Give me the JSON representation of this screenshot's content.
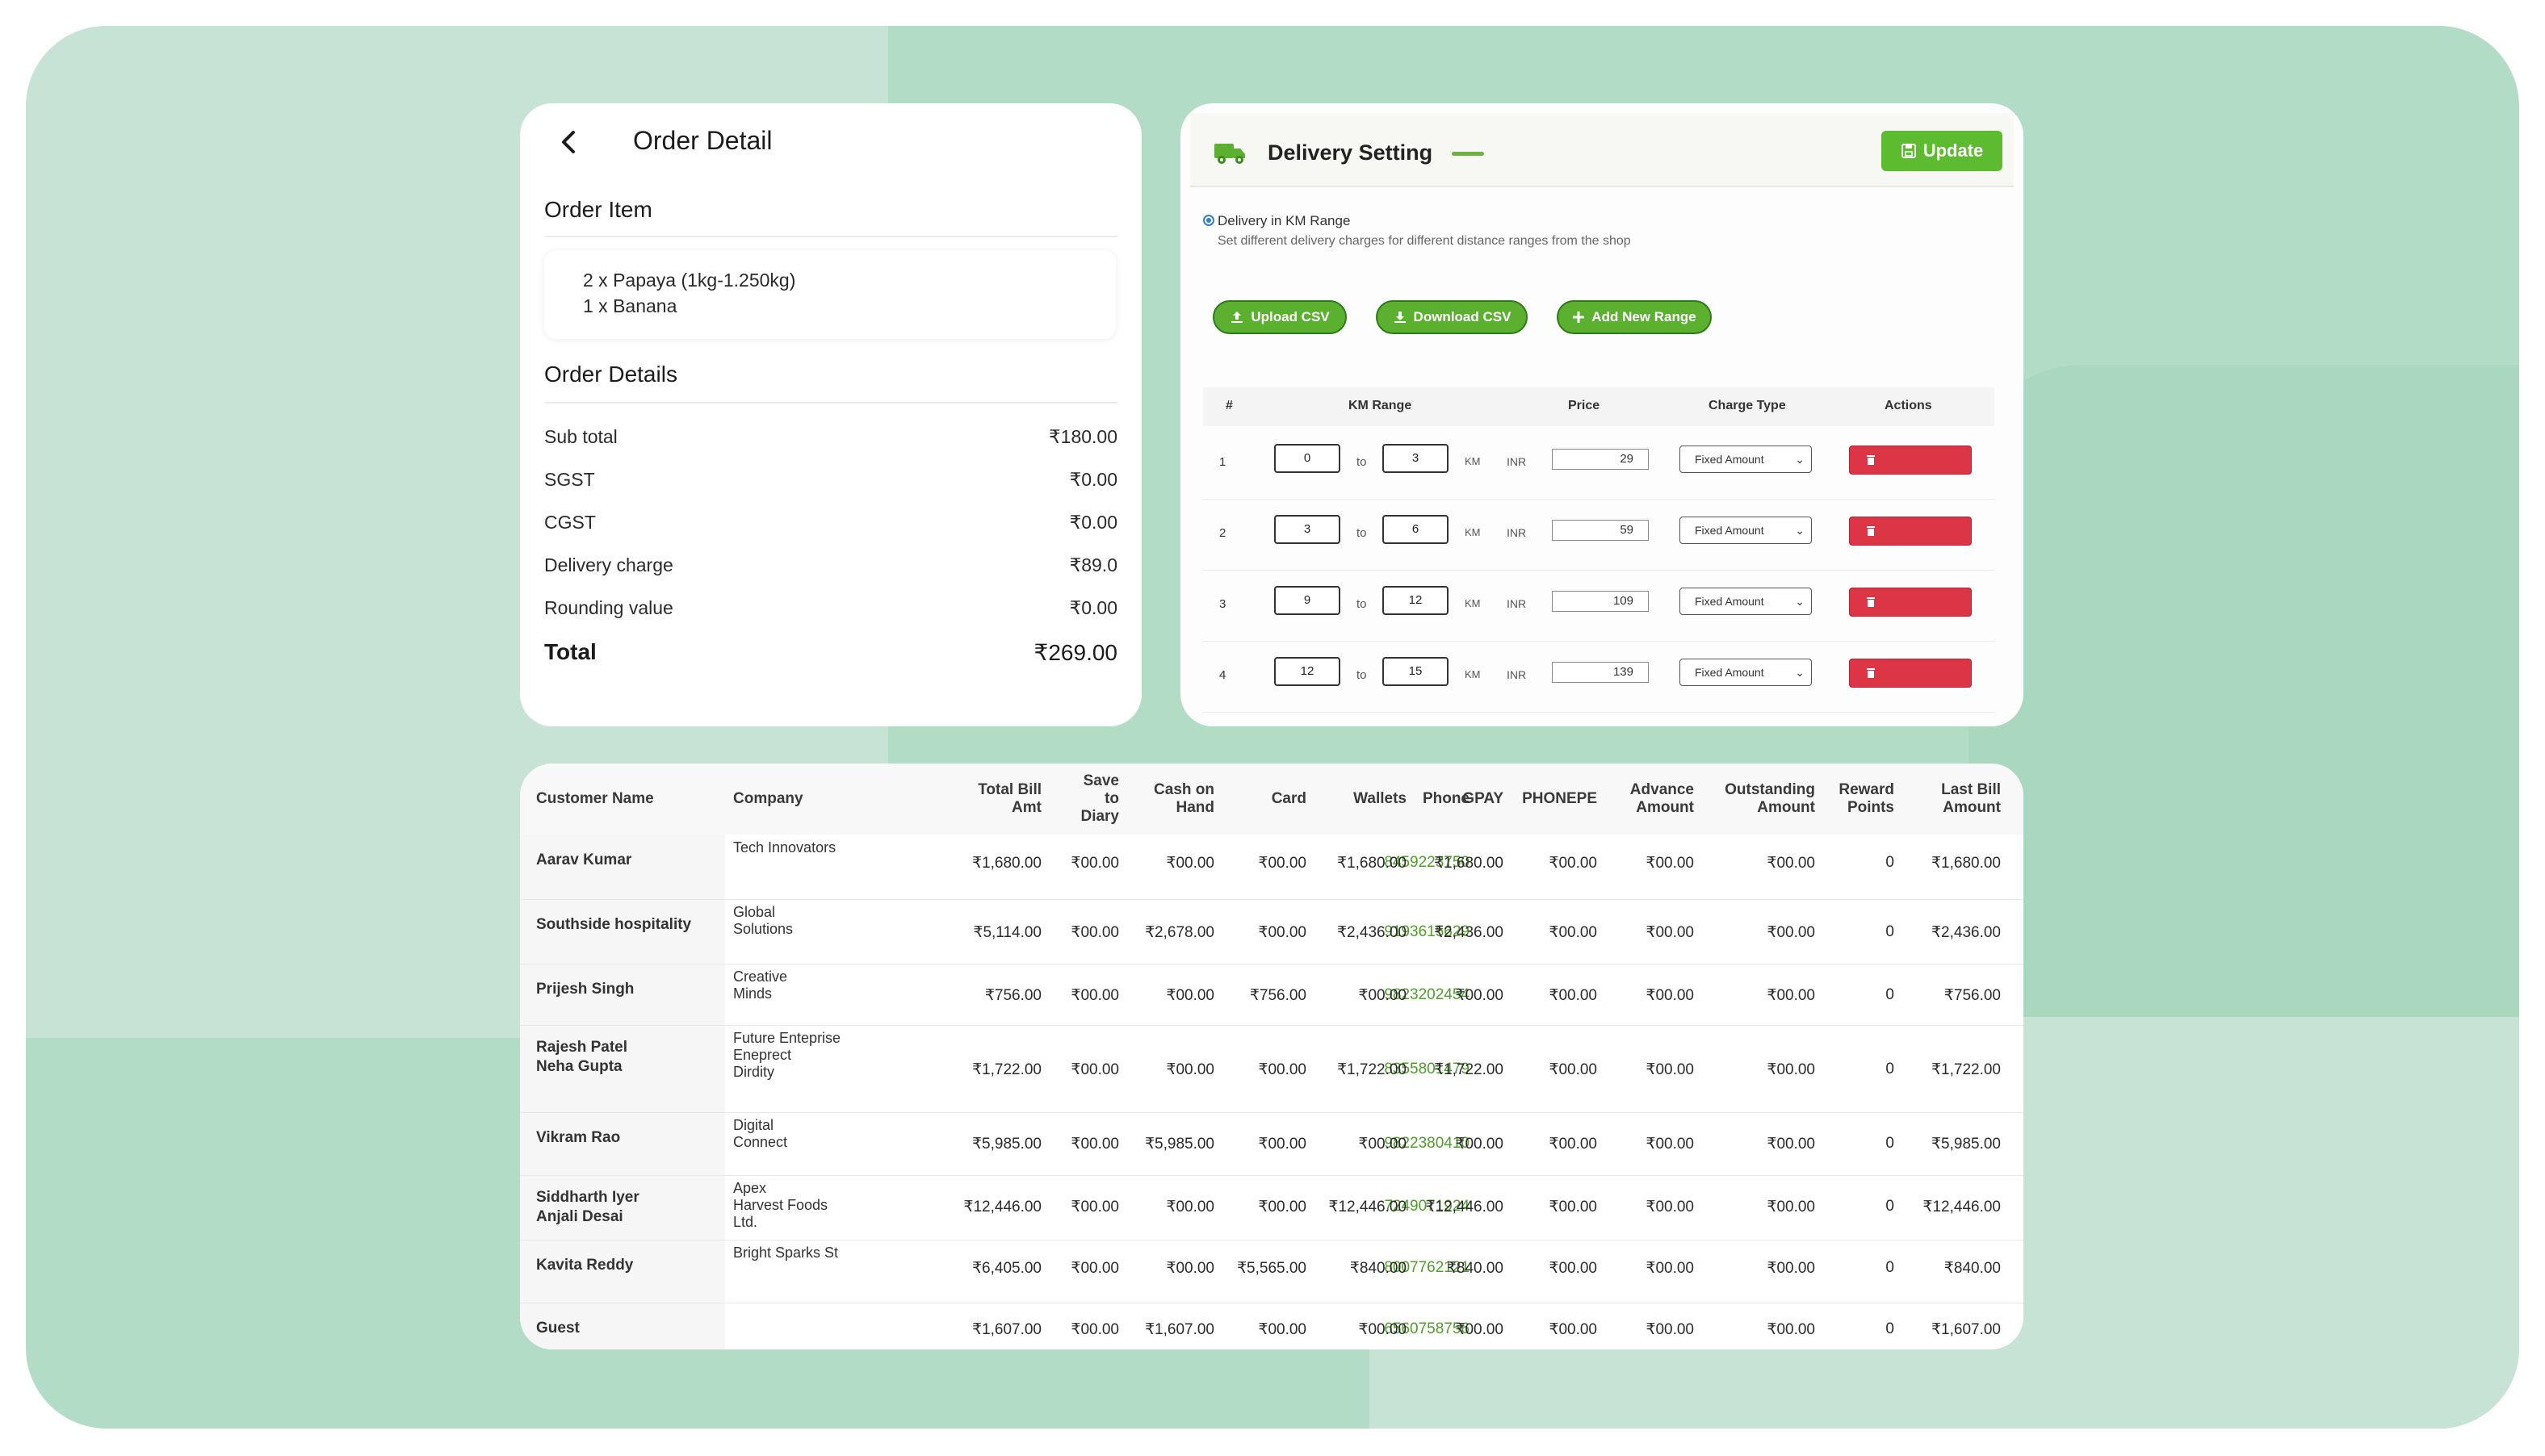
{
  "order": {
    "title": "Order Detail",
    "item_heading": "Order Item",
    "items": [
      "2 x Papaya (1kg-1.250kg)",
      "1 x Banana"
    ],
    "details_heading": "Order Details",
    "rows": [
      {
        "label": "Sub total",
        "value": "₹180.00"
      },
      {
        "label": "SGST",
        "value": "₹0.00"
      },
      {
        "label": "CGST",
        "value": "₹0.00"
      },
      {
        "label": "Delivery charge",
        "value": "₹89.0"
      },
      {
        "label": "Rounding value",
        "value": "₹0.00"
      }
    ],
    "total_label": "Total",
    "total_value": "₹269.00"
  },
  "delivery": {
    "title": "Delivery Setting",
    "update_label": "Update",
    "radio_label": "Delivery in KM Range",
    "radio_help": "Set different delivery charges for different distance ranges from the shop",
    "buttons": {
      "upload": "Upload CSV",
      "download": "Download CSV",
      "add": "Add New Range"
    },
    "headers": {
      "num": "#",
      "range": "KM Range",
      "price": "Price",
      "charge_type": "Charge Type",
      "actions": "Actions"
    },
    "to_label": "to",
    "km_label": "KM",
    "currency_label": "INR",
    "rows": [
      {
        "num": "1",
        "from": "0",
        "to": "3",
        "price": "29",
        "type": "Fixed Amount"
      },
      {
        "num": "2",
        "from": "3",
        "to": "6",
        "price": "59",
        "type": "Fixed Amount"
      },
      {
        "num": "3",
        "from": "9",
        "to": "12",
        "price": "109",
        "type": "Fixed Amount"
      },
      {
        "num": "4",
        "from": "12",
        "to": "15",
        "price": "139",
        "type": "Fixed Amount"
      }
    ],
    "colors": {
      "green": "#5cb030",
      "red": "#dc3545"
    }
  },
  "customers": {
    "headers": {
      "name": "Customer Name",
      "company": "Company",
      "phone": "Phone",
      "total": [
        "Total Bill",
        "Amt"
      ],
      "diary": [
        "Save",
        "to",
        "Diary"
      ],
      "cash": [
        "Cash on",
        "Hand"
      ],
      "card": "Card",
      "wallets": "Wallets",
      "gpay": "GPAY",
      "phonepe": "PHONEPE",
      "advance": [
        "Advance",
        "Amount"
      ],
      "outstanding": [
        "Outstanding",
        "Amount"
      ],
      "reward": [
        "Reward",
        "Points"
      ],
      "last": [
        "Last Bill",
        "Amount"
      ]
    },
    "rows": [
      {
        "name": [
          "Aarav Kumar"
        ],
        "company": [
          "Tech Innovators"
        ],
        "phone": "8459223750",
        "total": "₹1,680.00",
        "diary": "₹00.00",
        "cash": "₹00.00",
        "card": "₹00.00",
        "wallets": "₹1,680.00",
        "gpay": "₹1,680.00",
        "phonepe": "₹00.00",
        "advance": "₹00.00",
        "outstanding": "₹00.00",
        "reward": "0",
        "last": "₹1,680.00"
      },
      {
        "name": [
          "Southside hospitality"
        ],
        "company": [
          "Global",
          "Solutions"
        ],
        "phone": "9193615629",
        "total": "₹5,114.00",
        "diary": "₹00.00",
        "cash": "₹2,678.00",
        "card": "₹00.00",
        "wallets": "₹2,436.00",
        "gpay": "₹2,436.00",
        "phonepe": "₹00.00",
        "advance": "₹00.00",
        "outstanding": "₹00.00",
        "reward": "0",
        "last": "₹2,436.00"
      },
      {
        "name": [
          "Prijesh Singh"
        ],
        "company": [
          "Creative",
          "Minds"
        ],
        "phone": "9823202454",
        "total": "₹756.00",
        "diary": "₹00.00",
        "cash": "₹00.00",
        "card": "₹756.00",
        "wallets": "₹00.00",
        "gpay": "₹00.00",
        "phonepe": "₹00.00",
        "advance": "₹00.00",
        "outstanding": "₹00.00",
        "reward": "0",
        "last": "₹756.00"
      },
      {
        "name": [
          "Rajesh Patel",
          "Neha Gupta"
        ],
        "company": [
          "Future Enteprise",
          "Eneprect",
          "Dirdity"
        ],
        "phone": "8355801479",
        "total": "₹1,722.00",
        "diary": "₹00.00",
        "cash": "₹00.00",
        "card": "₹00.00",
        "wallets": "₹1,722.00",
        "gpay": "₹1,722.00",
        "phonepe": "₹00.00",
        "advance": "₹00.00",
        "outstanding": "₹00.00",
        "reward": "0",
        "last": "₹1,722.00"
      },
      {
        "name": [
          "Vikram Rao"
        ],
        "company": [
          "Digital",
          "Connect"
        ],
        "phone": "9822380410",
        "total": "₹5,985.00",
        "diary": "₹00.00",
        "cash": "₹5,985.00",
        "card": "₹00.00",
        "wallets": "₹00.00",
        "gpay": "₹00.00",
        "phonepe": "₹00.00",
        "advance": "₹00.00",
        "outstanding": "₹00.00",
        "reward": "0",
        "last": "₹5,985.00"
      },
      {
        "name": [
          "Siddharth Iyer",
          "Anjali Desai"
        ],
        "company": [
          "Apex",
          "Harvest Foods",
          "Ltd."
        ],
        "phone": "7249071924",
        "total": "₹12,446.00",
        "diary": "₹00.00",
        "cash": "₹00.00",
        "card": "₹00.00",
        "wallets": "₹12,446.00",
        "gpay": "₹12,446.00",
        "phonepe": "₹00.00",
        "advance": "₹00.00",
        "outstanding": "₹00.00",
        "reward": "0",
        "last": "₹12,446.00"
      },
      {
        "name": [
          "Kavita Reddy"
        ],
        "company": [
          "Bright Sparks St"
        ],
        "phone": "8007762121",
        "total": "₹6,405.00",
        "diary": "₹00.00",
        "cash": "₹00.00",
        "card": "₹5,565.00",
        "wallets": "₹840.00",
        "gpay": "₹840.00",
        "phonepe": "₹00.00",
        "advance": "₹00.00",
        "outstanding": "₹00.00",
        "reward": "0",
        "last": "₹840.00"
      },
      {
        "name": [
          "Guest"
        ],
        "company": [],
        "phone": "6560758756",
        "total": "₹1,607.00",
        "diary": "₹00.00",
        "cash": "₹1,607.00",
        "card": "₹00.00",
        "wallets": "₹00.00",
        "gpay": "₹00.00",
        "phonepe": "₹00.00",
        "advance": "₹00.00",
        "outstanding": "₹00.00",
        "reward": "0",
        "last": "₹1,607.00"
      }
    ]
  }
}
